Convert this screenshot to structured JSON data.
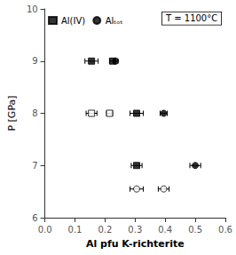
{
  "chart_data": {
    "type": "scatter",
    "annotation": "T = 1100°C",
    "xlabel": "Al pfu K-richterite",
    "ylabel": "P [GPa]",
    "xlim": [
      0.0,
      0.6
    ],
    "ylim": [
      6.0,
      10.0
    ],
    "xticks": [
      {
        "value": 0.0,
        "label": "0.0"
      },
      0.1,
      0.2,
      0.3,
      0.4,
      0.5,
      0.6
    ],
    "yticks": [
      6,
      7,
      8,
      9,
      10
    ],
    "grid": false,
    "legend": "upper left",
    "color": "#000000",
    "series": [
      {
        "name": "Al(IV)",
        "marker": "square",
        "x": [
          0.155,
          0.225,
          0.305,
          0.305
        ],
        "y": [
          9.0,
          9.0,
          8.0,
          7.0
        ],
        "xerr": [
          0.022,
          0.01,
          0.022,
          0.018
        ]
      },
      {
        "name": "Alₜₒₜ",
        "marker": "circle",
        "x": [
          0.235,
          0.395,
          0.5
        ],
        "y": [
          9.0,
          8.0,
          7.0
        ],
        "xerr": [
          0.008,
          0.012,
          0.018
        ]
      },
      {
        "name": "Al(IV)",
        "marker": "open_square",
        "x": [
          0.155,
          0.215
        ],
        "y": [
          8.0,
          8.0
        ],
        "xerr": [
          0.018,
          0.01
        ]
      },
      {
        "name": "Alₜₒₜ",
        "marker": "open_circle",
        "x": [
          0.305,
          0.395
        ],
        "y": [
          6.55,
          6.55
        ],
        "xerr": [
          0.022,
          0.018
        ]
      }
    ]
  }
}
